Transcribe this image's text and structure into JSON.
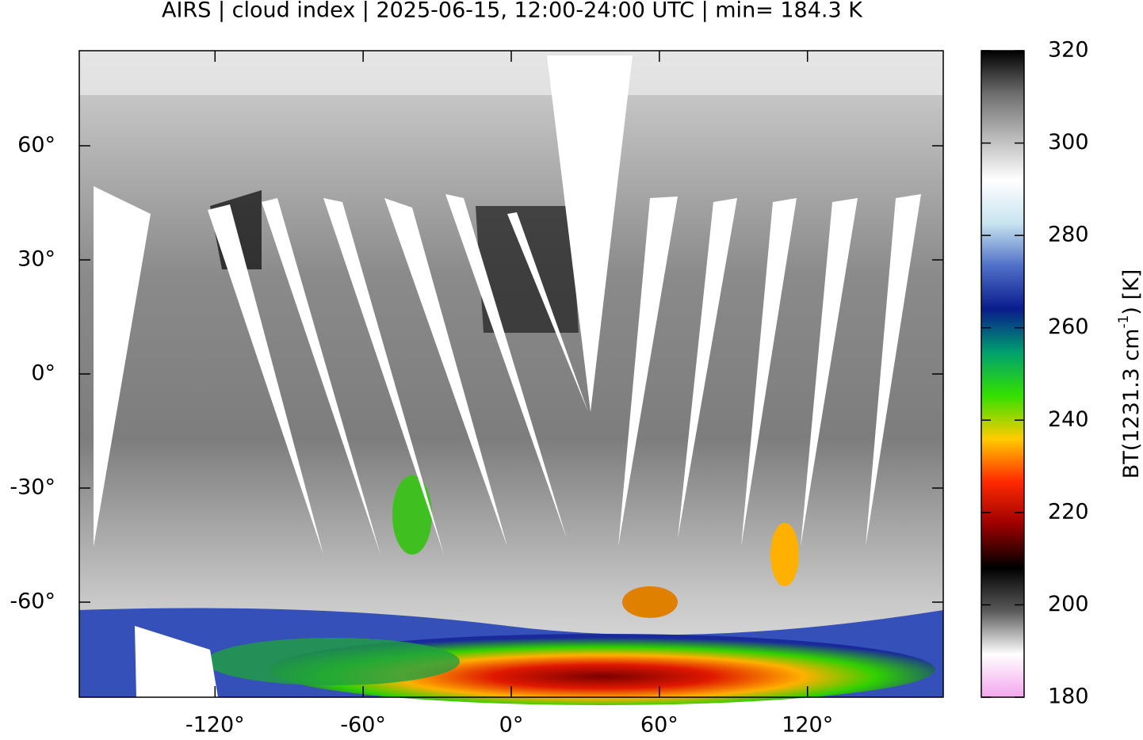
{
  "chart_data": {
    "type": "map",
    "title": "AIRS | cloud index | 2025-06-15, 12:00-24:00 UTC | min= 184.3 K",
    "xlim": [
      -175,
      175
    ],
    "xticks": [
      {
        "value": -120,
        "label": "-120°"
      },
      {
        "value": -60,
        "label": "-60°"
      },
      {
        "value": 0,
        "label": "0°"
      },
      {
        "value": 60,
        "label": "60°"
      },
      {
        "value": 120,
        "label": "120°"
      }
    ],
    "ylim": [
      -85,
      85
    ],
    "yticks": [
      {
        "value": 60,
        "label": "60°"
      },
      {
        "value": 30,
        "label": "30°"
      },
      {
        "value": 0,
        "label": "0°"
      },
      {
        "value": -30,
        "label": "-30°"
      },
      {
        "value": -60,
        "label": "-60°"
      }
    ],
    "colorbar": {
      "lim": [
        180,
        320
      ],
      "ticks": [
        180,
        200,
        220,
        240,
        260,
        280,
        300,
        320
      ],
      "label": [
        "BT(1231.3 cm",
        "-1",
        ") [K]"
      ],
      "colors": [
        "#f3a6ee",
        "#ffffff",
        "#5a5a5a",
        "#000000",
        "#9b0000",
        "#ff2a00",
        "#ffcc00",
        "#33e000",
        "#00a070",
        "#0a1c8c",
        "#4f6fc8",
        "#c9e4ef",
        "#ffffff",
        "#b9b9b9",
        "#6e6e6e",
        "#000000"
      ]
    }
  }
}
